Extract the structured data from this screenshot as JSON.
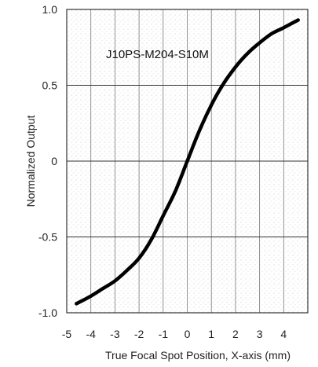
{
  "chart_data": {
    "type": "line",
    "title": "",
    "annotation": "J10PS-M204-S10M",
    "xlabel": "True Focal Spot Position, X-axis (mm)",
    "ylabel": "Normalized Output",
    "xlim": [
      -5,
      5
    ],
    "ylim": [
      -1,
      1
    ],
    "x_ticks": [
      -5,
      -4,
      -3,
      -2,
      -1,
      0,
      1,
      2,
      3,
      4
    ],
    "x_tick_labels": [
      "-5",
      "-4",
      "-3",
      "-2",
      "-1",
      "0",
      "1",
      "2",
      "3",
      "4"
    ],
    "y_ticks": [
      1.0,
      0.5,
      0,
      -0.5,
      -1.0
    ],
    "y_tick_labels": [
      "1.0",
      "0.5",
      "0",
      "-0.5",
      "-1.0"
    ],
    "grid": {
      "vertical": true,
      "horizontal": true
    },
    "series": [
      {
        "name": "",
        "color": "#000000",
        "x": [
          -4.6,
          -4,
          -3.5,
          -3,
          -2.5,
          -2,
          -1.5,
          -1,
          -0.5,
          0,
          0.5,
          1,
          1.5,
          2,
          2.5,
          3,
          3.5,
          4,
          4.6
        ],
        "y": [
          -0.94,
          -0.89,
          -0.84,
          -0.79,
          -0.72,
          -0.64,
          -0.52,
          -0.36,
          -0.2,
          0.0,
          0.2,
          0.37,
          0.51,
          0.62,
          0.71,
          0.78,
          0.84,
          0.88,
          0.93
        ]
      }
    ]
  }
}
